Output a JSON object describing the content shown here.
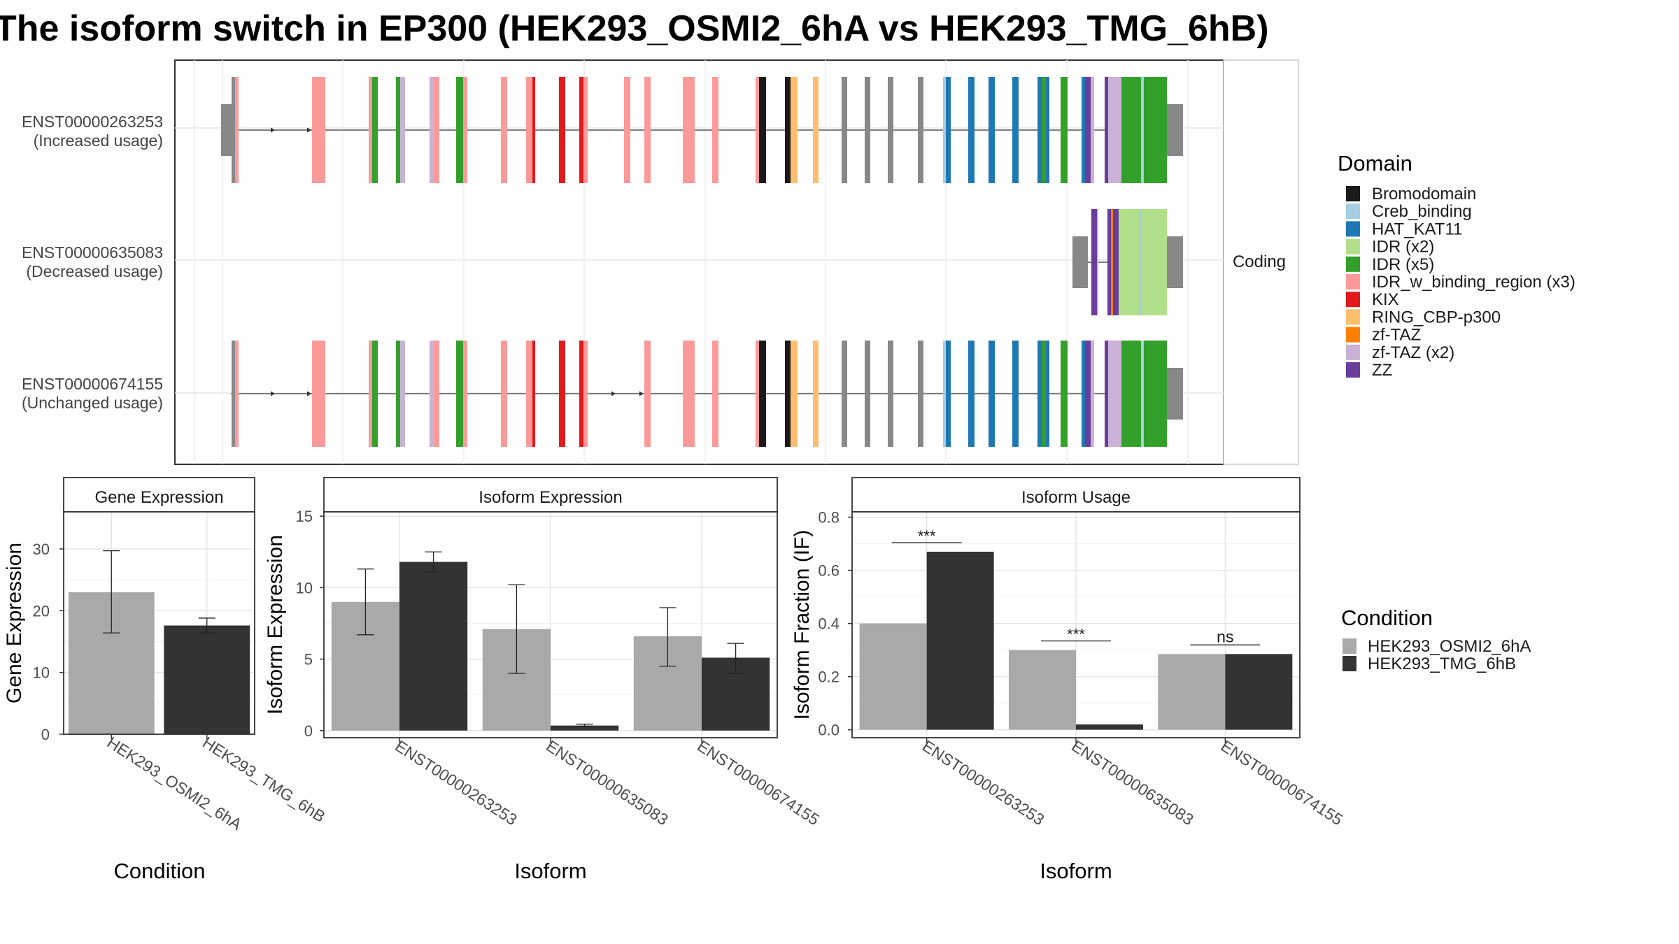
{
  "title": "The isoform switch in EP300 (HEK293_OSMI2_6hA vs HEK293_TMG_6hB)",
  "colors": {
    "cond_a": "#a9a9a9",
    "cond_b": "#333333",
    "utr": "#888888",
    "backbone": "#555555"
  },
  "structure": {
    "strip_label": "Coding",
    "isoforms": [
      {
        "id": "ENST00000263253",
        "usage": "(Increased usage)"
      },
      {
        "id": "ENST00000635083",
        "usage": "(Decreased usage)"
      },
      {
        "id": "ENST00000674155",
        "usage": "(Unchanged usage)"
      }
    ]
  },
  "legend_domain": {
    "title": "Domain",
    "items": [
      {
        "label": "Bromodomain",
        "color": "#1a1a1a"
      },
      {
        "label": "Creb_binding",
        "color": "#a6cee3"
      },
      {
        "label": "HAT_KAT11",
        "color": "#1f78b4"
      },
      {
        "label": "IDR (x2)",
        "color": "#b2df8a"
      },
      {
        "label": "IDR (x5)",
        "color": "#33a02c"
      },
      {
        "label": "IDR_w_binding_region (x3)",
        "color": "#fb9a99"
      },
      {
        "label": "KIX",
        "color": "#e31a1c"
      },
      {
        "label": "RING_CBP-p300",
        "color": "#fdbf6f"
      },
      {
        "label": "zf-TAZ",
        "color": "#ff7f00"
      },
      {
        "label": "zf-TAZ (x2)",
        "color": "#cab2d6"
      },
      {
        "label": "ZZ",
        "color": "#6a3d9a"
      }
    ]
  },
  "legend_condition": {
    "title": "Condition",
    "items": [
      {
        "label": "HEK293_OSMI2_6hA",
        "color": "#a9a9a9"
      },
      {
        "label": "HEK293_TMG_6hB",
        "color": "#333333"
      }
    ]
  },
  "chart_data": [
    {
      "type": "bar",
      "title": "Gene Expression",
      "xlabel": "Condition",
      "ylabel": "Gene Expression",
      "categories": [
        "HEK293_OSMI2_6hA",
        "HEK293_TMG_6hB"
      ],
      "values": [
        23.0,
        17.6
      ],
      "error_low": [
        16.4,
        16.4
      ],
      "error_high": [
        29.7,
        18.8
      ],
      "ylim": [
        0,
        36
      ],
      "yticks": [
        0,
        10,
        20,
        30
      ]
    },
    {
      "type": "bar",
      "title": "Isoform Expression",
      "xlabel": "Isoform",
      "ylabel": "Isoform Expression",
      "categories": [
        "ENST00000263253",
        "ENST00000635083",
        "ENST00000674155"
      ],
      "series": [
        {
          "name": "HEK293_OSMI2_6hA",
          "values": [
            9.0,
            7.1,
            6.6
          ],
          "error_low": [
            6.7,
            4.0,
            4.5
          ],
          "error_high": [
            11.3,
            10.2,
            8.6
          ]
        },
        {
          "name": "HEK293_TMG_6hB",
          "values": [
            11.8,
            0.35,
            5.1
          ],
          "error_low": [
            11.1,
            0.3,
            4.0
          ],
          "error_high": [
            12.5,
            0.45,
            6.1
          ]
        }
      ],
      "ylim": [
        -0.5,
        15.3
      ],
      "yticks": [
        0,
        5,
        10,
        15
      ]
    },
    {
      "type": "bar",
      "title": "Isoform Usage",
      "xlabel": "Isoform",
      "ylabel": "Isoform Fraction (IF)",
      "categories": [
        "ENST00000263253",
        "ENST00000635083",
        "ENST00000674155"
      ],
      "series": [
        {
          "name": "HEK293_OSMI2_6hA",
          "values": [
            0.4,
            0.3,
            0.285
          ]
        },
        {
          "name": "HEK293_TMG_6hB",
          "values": [
            0.67,
            0.02,
            0.285
          ]
        }
      ],
      "significance": [
        "***",
        "***",
        "ns"
      ],
      "ylim": [
        -0.03,
        0.82
      ],
      "yticks": [
        0.0,
        0.2,
        0.4,
        0.6,
        0.8
      ],
      "ytick_labels": [
        "0.0",
        "0.2",
        "0.4",
        "0.6",
        "0.8"
      ]
    }
  ]
}
